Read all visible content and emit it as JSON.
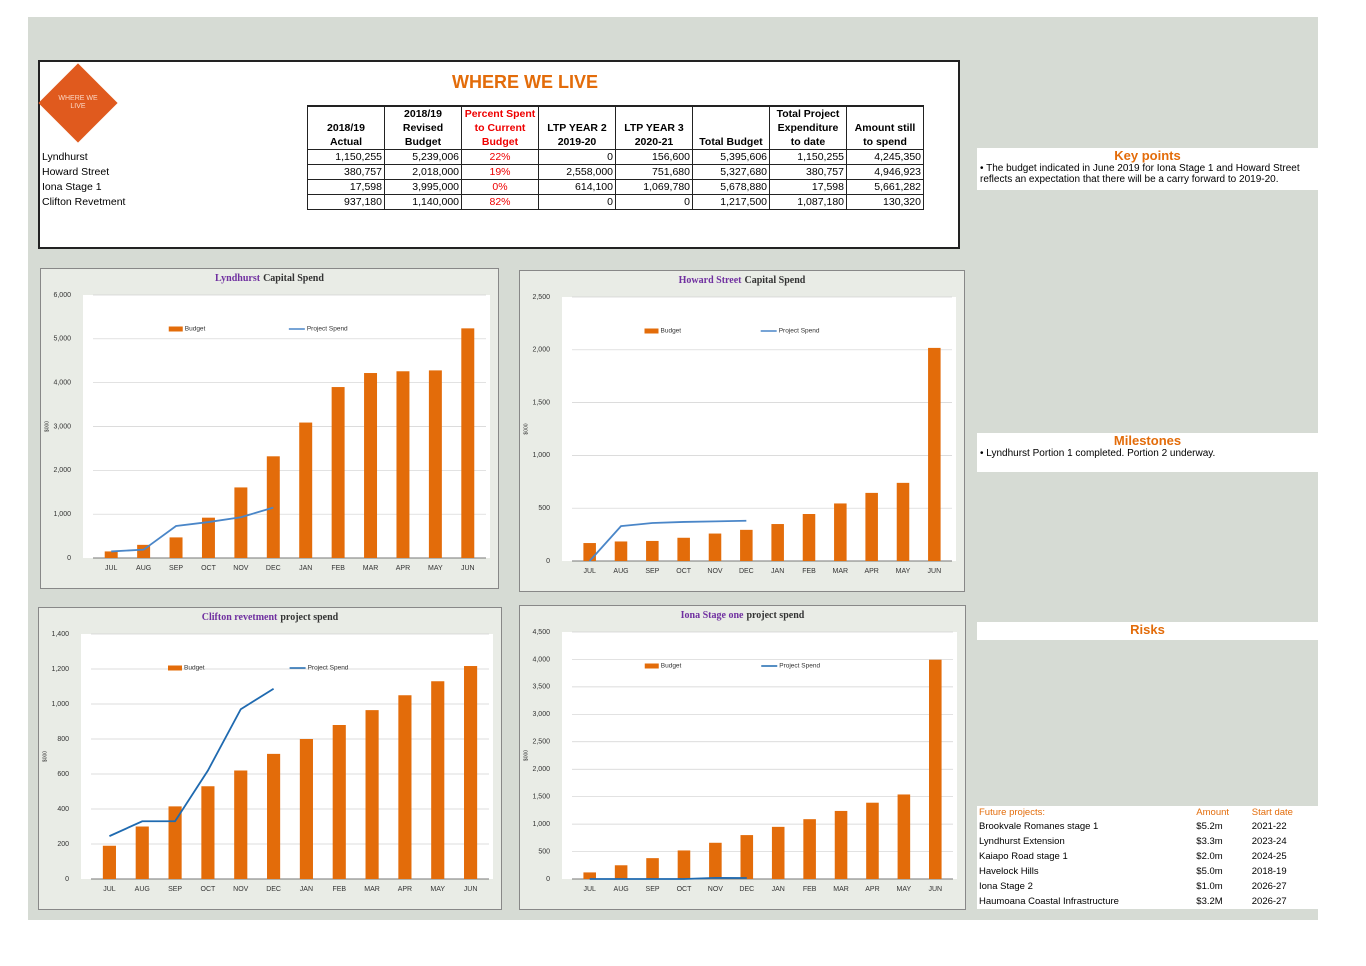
{
  "header": {
    "logo_text": "WHERE WE LIVE",
    "title": "WHERE WE LIVE"
  },
  "table": {
    "columns": [
      "2018/19 Actual",
      "2018/19 Revised Budget",
      "Percent Spent to Current Budget",
      "LTP YEAR 2 2019-20",
      "LTP YEAR 3 2020-21",
      "Total Budget",
      "Total Project Expenditure to date",
      "Amount still to spend"
    ],
    "rows": [
      [
        "Lyndhurst",
        "1,150,255",
        "5,239,006",
        "22%",
        "0",
        "156,600",
        "5,395,606",
        "1,150,255",
        "4,245,350"
      ],
      [
        "Howard Street",
        "380,757",
        "2,018,000",
        "19%",
        "2,558,000",
        "751,680",
        "5,327,680",
        "380,757",
        "4,946,923"
      ],
      [
        "Iona Stage 1",
        "17,598",
        "3,995,000",
        "0%",
        "614,100",
        "1,069,780",
        "5,678,880",
        "17,598",
        "5,661,282"
      ],
      [
        "Clifton Revetment",
        "937,180",
        "1,140,000",
        "82%",
        "0",
        "0",
        "1,217,500",
        "1,087,180",
        "130,320"
      ]
    ]
  },
  "chart_data": [
    {
      "type": "combo",
      "title_name": "Lyndhurst",
      "title_rest": "Capital Spend",
      "ylabel": "$000",
      "categories": [
        "JUL",
        "AUG",
        "SEP",
        "OCT",
        "NOV",
        "DEC",
        "JAN",
        "FEB",
        "MAR",
        "APR",
        "MAY",
        "JUN"
      ],
      "series": [
        {
          "name": "Budget",
          "type": "bar",
          "color": "#e36c0a",
          "values": [
            150,
            300,
            470,
            920,
            1610,
            2320,
            3090,
            3900,
            4220,
            4260,
            4280,
            5239
          ]
        },
        {
          "name": "Project Spend",
          "type": "line",
          "color": "#4a86c8",
          "values": [
            150,
            190,
            730,
            820,
            930,
            1150,
            null,
            null,
            null,
            null,
            null,
            null
          ]
        }
      ],
      "ylim": [
        0,
        6000
      ],
      "yticks": [
        0,
        {
          "value": 1000,
          "label": "1,000"
        },
        {
          "value": 2000,
          "label": "2,000"
        },
        {
          "value": 3000,
          "label": "3,000"
        },
        {
          "value": 4000,
          "label": "4,000"
        },
        {
          "value": 5000,
          "label": "5,000"
        },
        {
          "value": 6000,
          "label": "6,000"
        }
      ],
      "grid": true
    },
    {
      "type": "combo",
      "title_name": "Howard Street",
      "title_rest": "Capital Spend",
      "ylabel": "$000",
      "categories": [
        "JUL",
        "AUG",
        "SEP",
        "OCT",
        "NOV",
        "DEC",
        "JAN",
        "FEB",
        "MAR",
        "APR",
        "MAY",
        "JUN"
      ],
      "series": [
        {
          "name": "Budget",
          "type": "bar",
          "color": "#e36c0a",
          "values": [
            170,
            185,
            190,
            220,
            260,
            295,
            350,
            445,
            545,
            645,
            740,
            2018
          ]
        },
        {
          "name": "Project Spend",
          "type": "line",
          "color": "#4a86c8",
          "values": [
            0,
            330,
            360,
            370,
            375,
            381,
            null,
            null,
            null,
            null,
            null,
            null
          ]
        }
      ],
      "ylim": [
        0,
        2500
      ],
      "yticks": [
        0,
        500,
        {
          "value": 1000,
          "label": "1,000"
        },
        {
          "value": 1500,
          "label": "1,500"
        },
        {
          "value": 2000,
          "label": "2,000"
        },
        {
          "value": 2500,
          "label": "2,500"
        }
      ],
      "grid": true
    },
    {
      "type": "combo",
      "title_name": "Clifton revetment",
      "title_rest": "project spend",
      "ylabel": "$000",
      "categories": [
        "JUL",
        "AUG",
        "SEP",
        "OCT",
        "NOV",
        "DEC",
        "JAN",
        "FEB",
        "MAR",
        "APR",
        "MAY",
        "JUN"
      ],
      "series": [
        {
          "name": "Budget",
          "type": "bar",
          "color": "#e36c0a",
          "values": [
            190,
            300,
            415,
            530,
            620,
            715,
            800,
            880,
            965,
            1050,
            1130,
            1217
          ]
        },
        {
          "name": "Project Spend",
          "type": "line",
          "color": "#1f6ab0",
          "values": [
            245,
            330,
            330,
            620,
            970,
            1087,
            null,
            null,
            null,
            null,
            null,
            null
          ]
        }
      ],
      "ylim": [
        0,
        1400
      ],
      "yticks": [
        0,
        200,
        400,
        600,
        800,
        {
          "value": 1000,
          "label": "1,000"
        },
        {
          "value": 1200,
          "label": "1,200"
        },
        {
          "value": 1400,
          "label": "1,400"
        }
      ],
      "grid": true
    },
    {
      "type": "combo",
      "title_name": "Iona Stage one",
      "title_rest": "project spend",
      "ylabel": "$000",
      "categories": [
        "JUL",
        "AUG",
        "SEP",
        "OCT",
        "NOV",
        "DEC",
        "JAN",
        "FEB",
        "MAR",
        "APR",
        "MAY",
        "JUN"
      ],
      "series": [
        {
          "name": "Budget",
          "type": "bar",
          "color": "#e36c0a",
          "values": [
            120,
            250,
            380,
            520,
            660,
            800,
            950,
            1090,
            1240,
            1390,
            1540,
            3995
          ]
        },
        {
          "name": "Project Spend",
          "type": "line",
          "color": "#1f6ab0",
          "values": [
            0,
            0,
            0,
            0,
            20,
            18,
            null,
            null,
            null,
            null,
            null,
            null
          ]
        }
      ],
      "ylim": [
        0,
        4500
      ],
      "yticks": [
        0,
        500,
        {
          "value": 1000,
          "label": "1,000"
        },
        {
          "value": 1500,
          "label": "1,500"
        },
        {
          "value": 2000,
          "label": "2,000"
        },
        {
          "value": 2500,
          "label": "2,500"
        },
        {
          "value": 3000,
          "label": "3,000"
        },
        {
          "value": 3500,
          "label": "3,500"
        },
        {
          "value": 4000,
          "label": "4,000"
        },
        {
          "value": 4500,
          "label": "4,500"
        }
      ],
      "grid": true
    }
  ],
  "key_points": {
    "title": "Key points",
    "text": "• The budget indicated in June 2019 for Iona Stage 1 and Howard Street reflects an expectation that there will be a carry forward to 2019-20."
  },
  "milestones": {
    "title": "Milestones",
    "text": "• Lyndhurst Portion 1 completed. Portion 2 underway."
  },
  "risks": {
    "title": "Risks"
  },
  "future_projects": {
    "columns": [
      "Future projects:",
      "Amount",
      "Start date"
    ],
    "rows": [
      [
        "Brookvale Romanes stage 1",
        "$5.2m",
        "2021-22"
      ],
      [
        "Lyndhurst Extension",
        "$3.3m",
        "2023-24"
      ],
      [
        "Kaiapo Road stage 1",
        "$2.0m",
        "2024-25"
      ],
      [
        "Havelock Hills",
        "$5.0m",
        "2018-19"
      ],
      [
        "Iona Stage 2",
        "$1.0m",
        "2026-27"
      ],
      [
        "Haumoana Coastal Infrastructure",
        "$3.2M",
        "2026-27"
      ]
    ]
  }
}
